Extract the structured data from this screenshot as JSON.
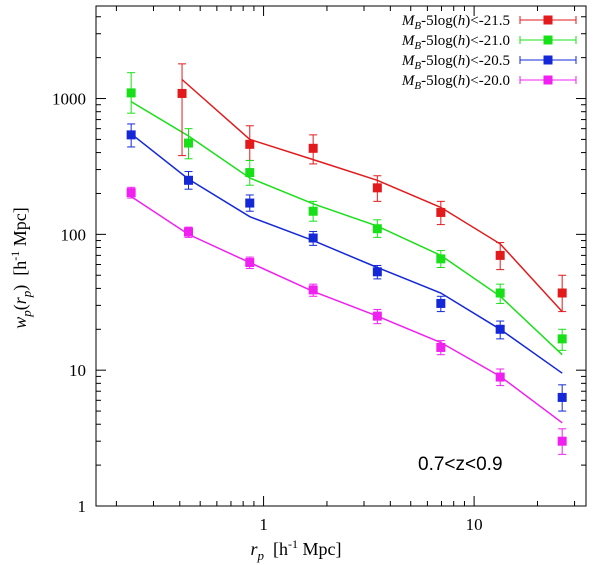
{
  "chart_data": {
    "type": "line",
    "title": "",
    "annotation": "0.7<z<0.9",
    "xlabel": "r_p  [h^-1 Mpc]",
    "ylabel": "w_p(r_p)  [h^-1 Mpc]",
    "xscale": "log",
    "yscale": "log",
    "xlim": [
      0.16,
      34
    ],
    "ylim": [
      1,
      4800
    ],
    "xticks": [
      {
        "value": 1,
        "label": "1"
      },
      {
        "value": 10,
        "label": "10"
      }
    ],
    "yticks": [
      {
        "value": 1,
        "label": "1"
      },
      {
        "value": 10,
        "label": "10"
      },
      {
        "value": 100,
        "label": "100"
      },
      {
        "value": 1000,
        "label": "1000"
      }
    ],
    "legend_position": "top-right",
    "series": [
      {
        "name": "M_B-5log(h)<-21.5",
        "color": "#e31a1c",
        "points": [
          {
            "x": 0.41,
            "y": 1090,
            "lo": 380,
            "hi": 1800
          },
          {
            "x": 0.86,
            "y": 460,
            "lo": 350,
            "hi": 630
          },
          {
            "x": 1.72,
            "y": 430,
            "lo": 330,
            "hi": 540
          },
          {
            "x": 3.47,
            "y": 220,
            "lo": 175,
            "hi": 270
          },
          {
            "x": 6.95,
            "y": 145,
            "lo": 118,
            "hi": 175
          },
          {
            "x": 13.3,
            "y": 70,
            "lo": 55,
            "hi": 87
          },
          {
            "x": 26.2,
            "y": 37,
            "lo": 27,
            "hi": 50
          }
        ],
        "model": [
          {
            "x": 0.41,
            "y": 1380
          },
          {
            "x": 0.86,
            "y": 500
          },
          {
            "x": 1.72,
            "y": 355
          },
          {
            "x": 3.47,
            "y": 250
          },
          {
            "x": 6.95,
            "y": 158
          },
          {
            "x": 13.3,
            "y": 85
          },
          {
            "x": 26.2,
            "y": 27
          }
        ]
      },
      {
        "name": "M_B-5log(h)<-21.0",
        "color": "#18e018",
        "points": [
          {
            "x": 0.235,
            "y": 1100,
            "lo": 780,
            "hi": 1550
          },
          {
            "x": 0.44,
            "y": 470,
            "lo": 360,
            "hi": 600
          },
          {
            "x": 0.86,
            "y": 285,
            "lo": 230,
            "hi": 350
          },
          {
            "x": 1.72,
            "y": 148,
            "lo": 125,
            "hi": 175
          },
          {
            "x": 3.47,
            "y": 110,
            "lo": 95,
            "hi": 128
          },
          {
            "x": 6.95,
            "y": 66,
            "lo": 57,
            "hi": 76
          },
          {
            "x": 13.3,
            "y": 37,
            "lo": 31,
            "hi": 43
          },
          {
            "x": 26.2,
            "y": 17,
            "lo": 14,
            "hi": 20
          }
        ],
        "model": [
          {
            "x": 0.235,
            "y": 950
          },
          {
            "x": 0.44,
            "y": 530
          },
          {
            "x": 0.86,
            "y": 260
          },
          {
            "x": 1.72,
            "y": 168
          },
          {
            "x": 3.47,
            "y": 115
          },
          {
            "x": 6.95,
            "y": 70
          },
          {
            "x": 13.3,
            "y": 35
          },
          {
            "x": 26.2,
            "y": 13
          }
        ]
      },
      {
        "name": "M_B-5log(h)<-20.5",
        "color": "#1428d8",
        "points": [
          {
            "x": 0.235,
            "y": 540,
            "lo": 440,
            "hi": 650
          },
          {
            "x": 0.44,
            "y": 250,
            "lo": 215,
            "hi": 290
          },
          {
            "x": 0.86,
            "y": 170,
            "lo": 148,
            "hi": 195
          },
          {
            "x": 1.72,
            "y": 94,
            "lo": 83,
            "hi": 105
          },
          {
            "x": 3.47,
            "y": 53,
            "lo": 47,
            "hi": 59
          },
          {
            "x": 6.95,
            "y": 31,
            "lo": 27,
            "hi": 35
          },
          {
            "x": 13.3,
            "y": 20,
            "lo": 17,
            "hi": 23
          },
          {
            "x": 26.2,
            "y": 6.3,
            "lo": 5,
            "hi": 7.8
          }
        ],
        "model": [
          {
            "x": 0.235,
            "y": 550
          },
          {
            "x": 0.44,
            "y": 255
          },
          {
            "x": 0.86,
            "y": 135
          },
          {
            "x": 1.72,
            "y": 90
          },
          {
            "x": 3.47,
            "y": 57
          },
          {
            "x": 6.95,
            "y": 37
          },
          {
            "x": 13.3,
            "y": 20
          },
          {
            "x": 26.2,
            "y": 9.5
          }
        ]
      },
      {
        "name": "M_B-5log(h)<-20.0",
        "color": "#f020f0",
        "points": [
          {
            "x": 0.235,
            "y": 203,
            "lo": 185,
            "hi": 222
          },
          {
            "x": 0.44,
            "y": 104,
            "lo": 95,
            "hi": 113
          },
          {
            "x": 0.86,
            "y": 62,
            "lo": 56,
            "hi": 68
          },
          {
            "x": 1.72,
            "y": 39,
            "lo": 35,
            "hi": 43
          },
          {
            "x": 3.47,
            "y": 25,
            "lo": 22,
            "hi": 28
          },
          {
            "x": 6.95,
            "y": 14.7,
            "lo": 13,
            "hi": 16.5
          },
          {
            "x": 13.3,
            "y": 8.9,
            "lo": 7.7,
            "hi": 10.2
          },
          {
            "x": 26.2,
            "y": 3.0,
            "lo": 2.4,
            "hi": 3.7
          }
        ],
        "model": [
          {
            "x": 0.235,
            "y": 190
          },
          {
            "x": 0.44,
            "y": 100
          },
          {
            "x": 0.86,
            "y": 62
          },
          {
            "x": 1.72,
            "y": 38
          },
          {
            "x": 3.47,
            "y": 25
          },
          {
            "x": 6.95,
            "y": 16
          },
          {
            "x": 13.3,
            "y": 9
          },
          {
            "x": 26.2,
            "y": 4.1
          }
        ]
      }
    ]
  }
}
